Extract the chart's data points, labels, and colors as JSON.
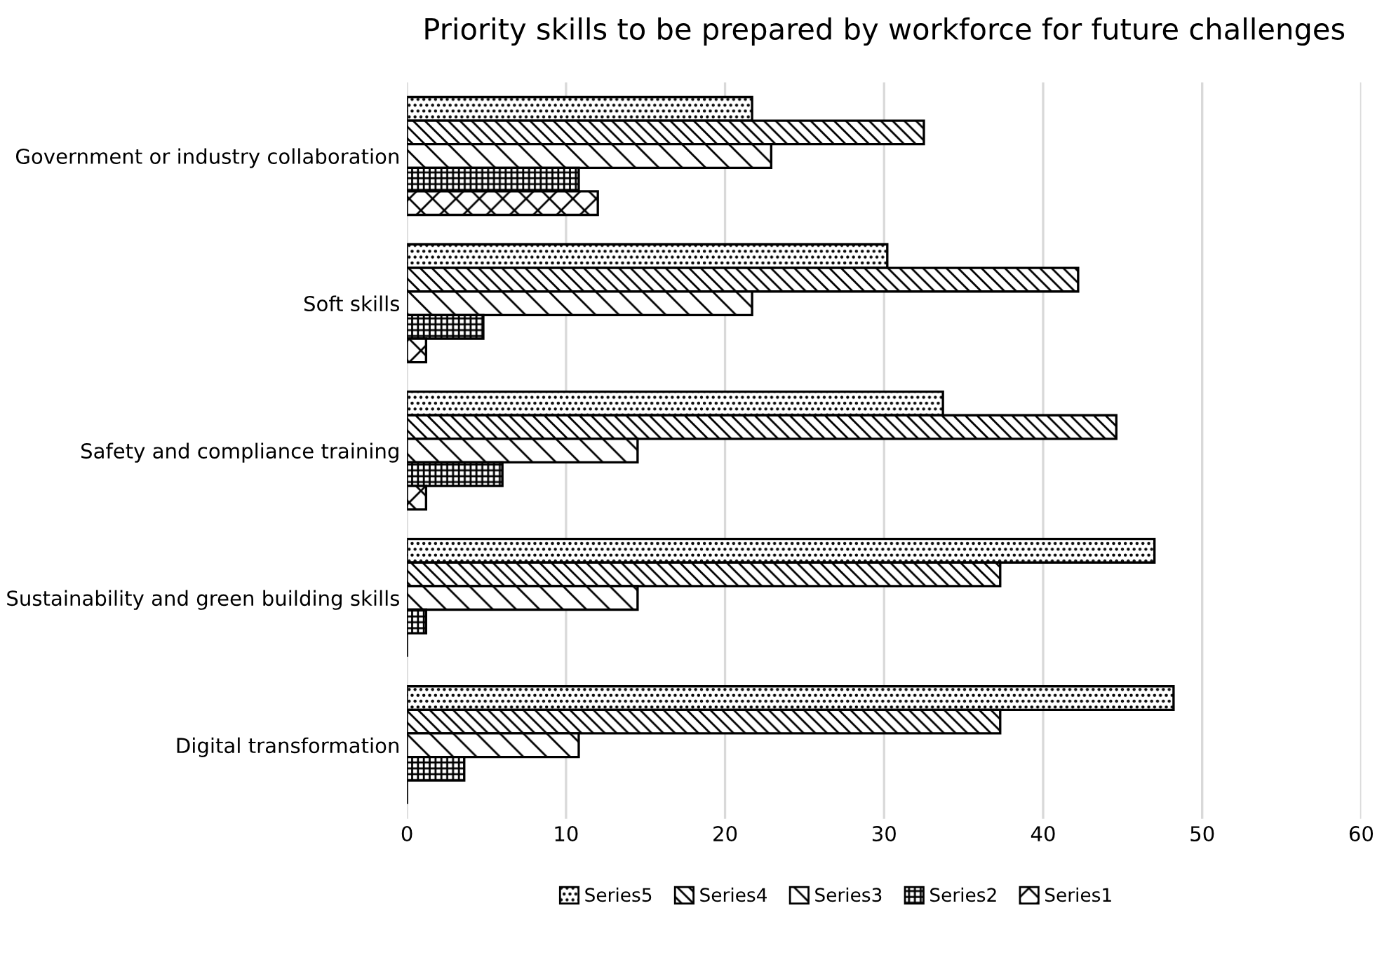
{
  "chart_data": {
    "type": "bar",
    "orientation": "horizontal",
    "title": "Priority skills to be prepared by workforce for future challenges",
    "categories": [
      "Government or industry collaboration",
      "Soft skills",
      "Safety and compliance training",
      "Sustainability and green building skills",
      "Digital transformation"
    ],
    "series": [
      {
        "name": "Series5",
        "color": "#000000",
        "values": [
          21.7,
          30.2,
          33.7,
          47.0,
          48.2
        ]
      },
      {
        "name": "Series4",
        "color": "#000000",
        "values": [
          32.5,
          42.2,
          44.6,
          37.3,
          37.3
        ]
      },
      {
        "name": "Series3",
        "color": "#000000",
        "values": [
          22.9,
          21.7,
          14.5,
          14.5,
          10.8
        ]
      },
      {
        "name": "Series2",
        "color": "#000000",
        "values": [
          10.8,
          4.8,
          6.0,
          1.2,
          3.6
        ]
      },
      {
        "name": "Series1",
        "color": "#000000",
        "values": [
          12.0,
          1.2,
          1.2,
          0,
          0
        ]
      }
    ],
    "xlim": [
      0,
      60
    ],
    "xticks": [
      0,
      10,
      20,
      30,
      40,
      50,
      60
    ],
    "grid": "x",
    "legend": "bottom"
  }
}
